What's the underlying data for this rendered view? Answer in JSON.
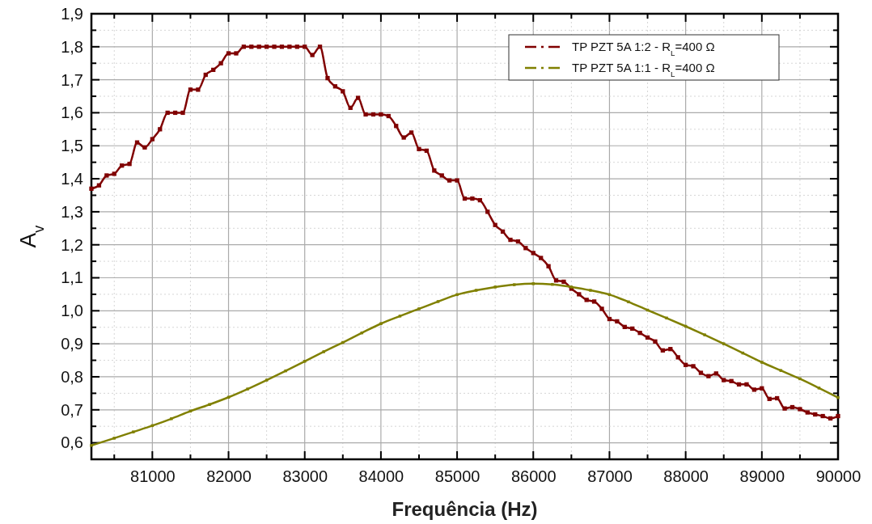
{
  "chart_data": {
    "type": "line",
    "xlabel": "Frequência (Hz)",
    "ylabel": "A$_{v}$",
    "xlim": [
      80200,
      90000
    ],
    "ylim": [
      0.55,
      1.9
    ],
    "xticks": [
      {
        "value": 80500,
        "label": null
      },
      81000,
      {
        "value": 81500,
        "label": null
      },
      82000,
      {
        "value": 82500,
        "label": null
      },
      83000,
      {
        "value": 83500,
        "label": null
      },
      84000,
      {
        "value": 84500,
        "label": null
      },
      85000,
      {
        "value": 85500,
        "label": null
      },
      86000,
      {
        "value": 86500,
        "label": null
      },
      87000,
      {
        "value": 87500,
        "label": null
      },
      88000,
      {
        "value": 88500,
        "label": null
      },
      89000,
      {
        "value": 89500,
        "label": null
      },
      90000
    ],
    "yticks": [
      {
        "value": 0.6,
        "label": "0,6"
      },
      {
        "value": 0.65,
        "label": null
      },
      {
        "value": 0.7,
        "label": "0,7"
      },
      {
        "value": 0.75,
        "label": null
      },
      {
        "value": 0.8,
        "label": "0,8"
      },
      {
        "value": 0.85,
        "label": null
      },
      {
        "value": 0.9,
        "label": "0,9"
      },
      {
        "value": 0.95,
        "label": null
      },
      {
        "value": 1.0,
        "label": "1,0"
      },
      {
        "value": 1.05,
        "label": null
      },
      {
        "value": 1.1,
        "label": "1,1"
      },
      {
        "value": 1.15,
        "label": null
      },
      {
        "value": 1.2,
        "label": "1,2"
      },
      {
        "value": 1.25,
        "label": null
      },
      {
        "value": 1.3,
        "label": "1,3"
      },
      {
        "value": 1.35,
        "label": null
      },
      {
        "value": 1.4,
        "label": "1,4"
      },
      {
        "value": 1.45,
        "label": null
      },
      {
        "value": 1.5,
        "label": "1,5"
      },
      {
        "value": 1.55,
        "label": null
      },
      {
        "value": 1.6,
        "label": "1,6"
      },
      {
        "value": 1.65,
        "label": null
      },
      {
        "value": 1.7,
        "label": "1,7"
      },
      {
        "value": 1.75,
        "label": null
      },
      {
        "value": 1.8,
        "label": "1,8"
      },
      {
        "value": 1.85,
        "label": null
      },
      {
        "value": 1.9,
        "label": "1,9"
      }
    ],
    "grid": true,
    "legend": "top right",
    "marker": "square",
    "line_style": "solid",
    "series": [
      {
        "name": "TP PZT 5A 1:2 - R$_{L}$=400 Ω",
        "color": "#800000",
        "x": [
          80200,
          80300,
          80400,
          80500,
          80600,
          80700,
          80800,
          80900,
          81000,
          81100,
          81200,
          81300,
          81400,
          81500,
          81600,
          81700,
          81800,
          81900,
          82000,
          82100,
          82200,
          82300,
          82400,
          82500,
          82600,
          82700,
          82800,
          82900,
          83000,
          83100,
          83200,
          83300,
          83400,
          83500,
          83600,
          83700,
          83800,
          83900,
          84000,
          84100,
          84200,
          84300,
          84400,
          84500,
          84600,
          84700,
          84800,
          84900,
          85000,
          85100,
          85200,
          85300,
          85400,
          85500,
          85600,
          85700,
          85800,
          85900,
          86000,
          86100,
          86200,
          86300,
          86400,
          86500,
          86600,
          86700,
          86800,
          86900,
          87000,
          87100,
          87200,
          87300,
          87400,
          87500,
          87600,
          87700,
          87800,
          87900,
          88000,
          88100,
          88200,
          88300,
          88400,
          88500,
          88600,
          88700,
          88800,
          88900,
          89000,
          89100,
          89200,
          89300,
          89400,
          89500,
          89600,
          89700,
          89800,
          89900,
          90000
        ],
        "values": [
          1.37,
          1.38,
          1.41,
          1.415,
          1.44,
          1.445,
          1.51,
          1.495,
          1.52,
          1.55,
          1.6,
          1.6,
          1.6,
          1.67,
          1.67,
          1.715,
          1.73,
          1.75,
          1.78,
          1.78,
          1.8,
          1.8,
          1.8,
          1.8,
          1.8,
          1.8,
          1.8,
          1.8,
          1.8,
          1.775,
          1.8,
          1.705,
          1.68,
          1.665,
          1.615,
          1.645,
          1.595,
          1.595,
          1.595,
          1.59,
          1.56,
          1.525,
          1.54,
          1.49,
          1.485,
          1.425,
          1.41,
          1.395,
          1.395,
          1.34,
          1.34,
          1.335,
          1.3,
          1.26,
          1.24,
          1.215,
          1.21,
          1.19,
          1.175,
          1.16,
          1.135,
          1.092,
          1.088,
          1.067,
          1.05,
          1.033,
          1.028,
          1.006,
          0.975,
          0.968,
          0.951,
          0.946,
          0.933,
          0.919,
          0.907,
          0.88,
          0.884,
          0.859,
          0.836,
          0.832,
          0.812,
          0.802,
          0.81,
          0.79,
          0.787,
          0.777,
          0.777,
          0.761,
          0.765,
          0.733,
          0.735,
          0.704,
          0.708,
          0.702,
          0.692,
          0.686,
          0.681,
          0.674,
          0.681
        ]
      },
      {
        "name": "TP PZT 5A 1:1 - R$_{L}$=400 Ω",
        "color": "#808000",
        "x": [
          80200,
          80500,
          80750,
          81000,
          81250,
          81500,
          81750,
          82000,
          82250,
          82500,
          82750,
          83000,
          83250,
          83500,
          83750,
          84000,
          84250,
          84500,
          84750,
          85000,
          85250,
          85500,
          85750,
          86000,
          86250,
          86500,
          86750,
          87000,
          87250,
          87500,
          87750,
          88000,
          88250,
          88500,
          88750,
          89000,
          89250,
          89500,
          89750,
          90000
        ],
        "values": [
          0.592,
          0.614,
          0.633,
          0.652,
          0.673,
          0.696,
          0.716,
          0.738,
          0.763,
          0.79,
          0.818,
          0.847,
          0.876,
          0.904,
          0.933,
          0.961,
          0.984,
          1.006,
          1.028,
          1.049,
          1.062,
          1.072,
          1.079,
          1.082,
          1.08,
          1.072,
          1.062,
          1.049,
          1.027,
          1.002,
          0.978,
          0.953,
          0.927,
          0.9,
          0.872,
          0.844,
          0.819,
          0.794,
          0.766,
          0.737
        ]
      }
    ]
  }
}
